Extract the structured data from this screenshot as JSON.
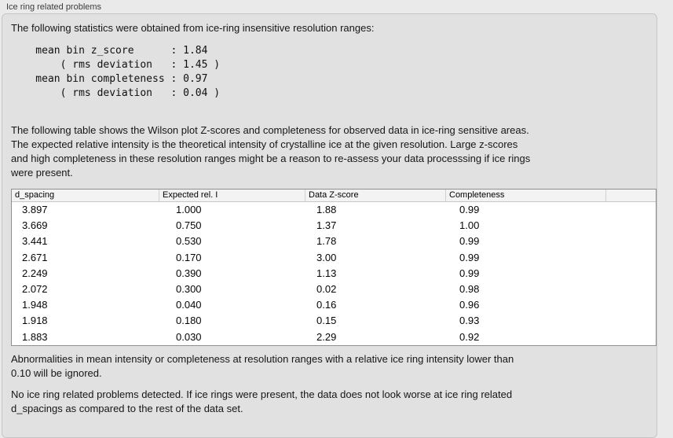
{
  "panel": {
    "title": "Ice ring related problems"
  },
  "intro": {
    "text": "The following statistics were obtained from ice-ring insensitive resolution ranges:"
  },
  "stats_block": {
    "text": "    mean bin z_score      : 1.84\n        ( rms deviation   : 1.45 )\n    mean bin completeness : 0.97\n        ( rms deviation   : 0.04 )",
    "mean_bin_z_score": "1.84",
    "z_score_rms_deviation": "1.45",
    "mean_bin_completeness": "0.97",
    "completeness_rms_deviation": "0.04"
  },
  "description": {
    "text": "The following table shows the Wilson plot Z-scores and completeness for observed data in ice-ring sensitive areas.\nThe expected relative intensity is the theoretical intensity of crystalline ice at the given resolution. Large z-scores\nand high completeness in these resolution ranges might be a reason to re-assess your data processsing if ice rings\nwere present."
  },
  "table": {
    "columns": [
      "d_spacing",
      "Expected rel. I",
      "Data Z-score",
      "Completeness"
    ],
    "rows": [
      [
        "3.897",
        "1.000",
        "1.88",
        "0.99"
      ],
      [
        "3.669",
        "0.750",
        "1.37",
        "1.00"
      ],
      [
        "3.441",
        "0.530",
        "1.78",
        "0.99"
      ],
      [
        "2.671",
        "0.170",
        "3.00",
        "0.99"
      ],
      [
        "2.249",
        "0.390",
        "1.13",
        "0.99"
      ],
      [
        "2.072",
        "0.300",
        "0.02",
        "0.98"
      ],
      [
        "1.948",
        "0.040",
        "0.16",
        "0.96"
      ],
      [
        "1.918",
        "0.180",
        "0.15",
        "0.93"
      ],
      [
        "1.883",
        "0.030",
        "2.29",
        "0.92"
      ]
    ]
  },
  "notes": {
    "ignore_rule": "Abnormalities in mean intensity or completeness at resolution ranges with a relative ice ring intensity lower than\n0.10 will be ignored.",
    "conclusion": "No ice ring related problems detected. If ice rings were present, the data does not look worse at ice ring related\nd_spacings as compared to the rest of the data set."
  },
  "colors": {
    "window_background": "#eaeaea",
    "groupbox_background": "#e1e1e1",
    "table_background": "#ffffff",
    "table_header_background": "#f3f3f3",
    "table_border": "#8f8f8f"
  }
}
